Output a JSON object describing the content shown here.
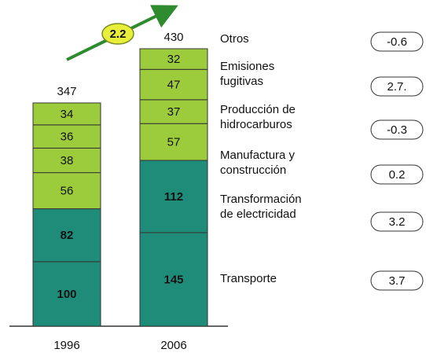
{
  "chart_data": {
    "type": "stacked_bar",
    "categories": [
      "1996",
      "2006"
    ],
    "totals": [
      347,
      430
    ],
    "annotation": "2.2",
    "series": [
      {
        "name": "Transporte",
        "color": "#1f8c7a",
        "values": [
          100,
          145
        ]
      },
      {
        "name": "Transformación de electricidad",
        "color": "#1f8c7a",
        "values": [
          82,
          112
        ]
      },
      {
        "name": "Manufactura y construcción",
        "color": "#9ccc3c",
        "values": [
          56,
          57
        ]
      },
      {
        "name": "Producción de hidrocarburos",
        "color": "#9ccc3c",
        "values": [
          38,
          37
        ]
      },
      {
        "name": "Emisiones fugitivas",
        "color": "#9ccc3c",
        "values": [
          36,
          47
        ]
      },
      {
        "name": "Otros",
        "color": "#9ccc3c",
        "values": [
          34,
          32
        ]
      }
    ],
    "growth": {
      "values": [
        3.7,
        3.2,
        0.2,
        -0.3,
        2.7,
        -0.6
      ],
      "value_labels": [
        "3.7",
        "3.2",
        "0.2",
        "-0.3",
        "2.7.",
        "-0.6"
      ]
    }
  }
}
